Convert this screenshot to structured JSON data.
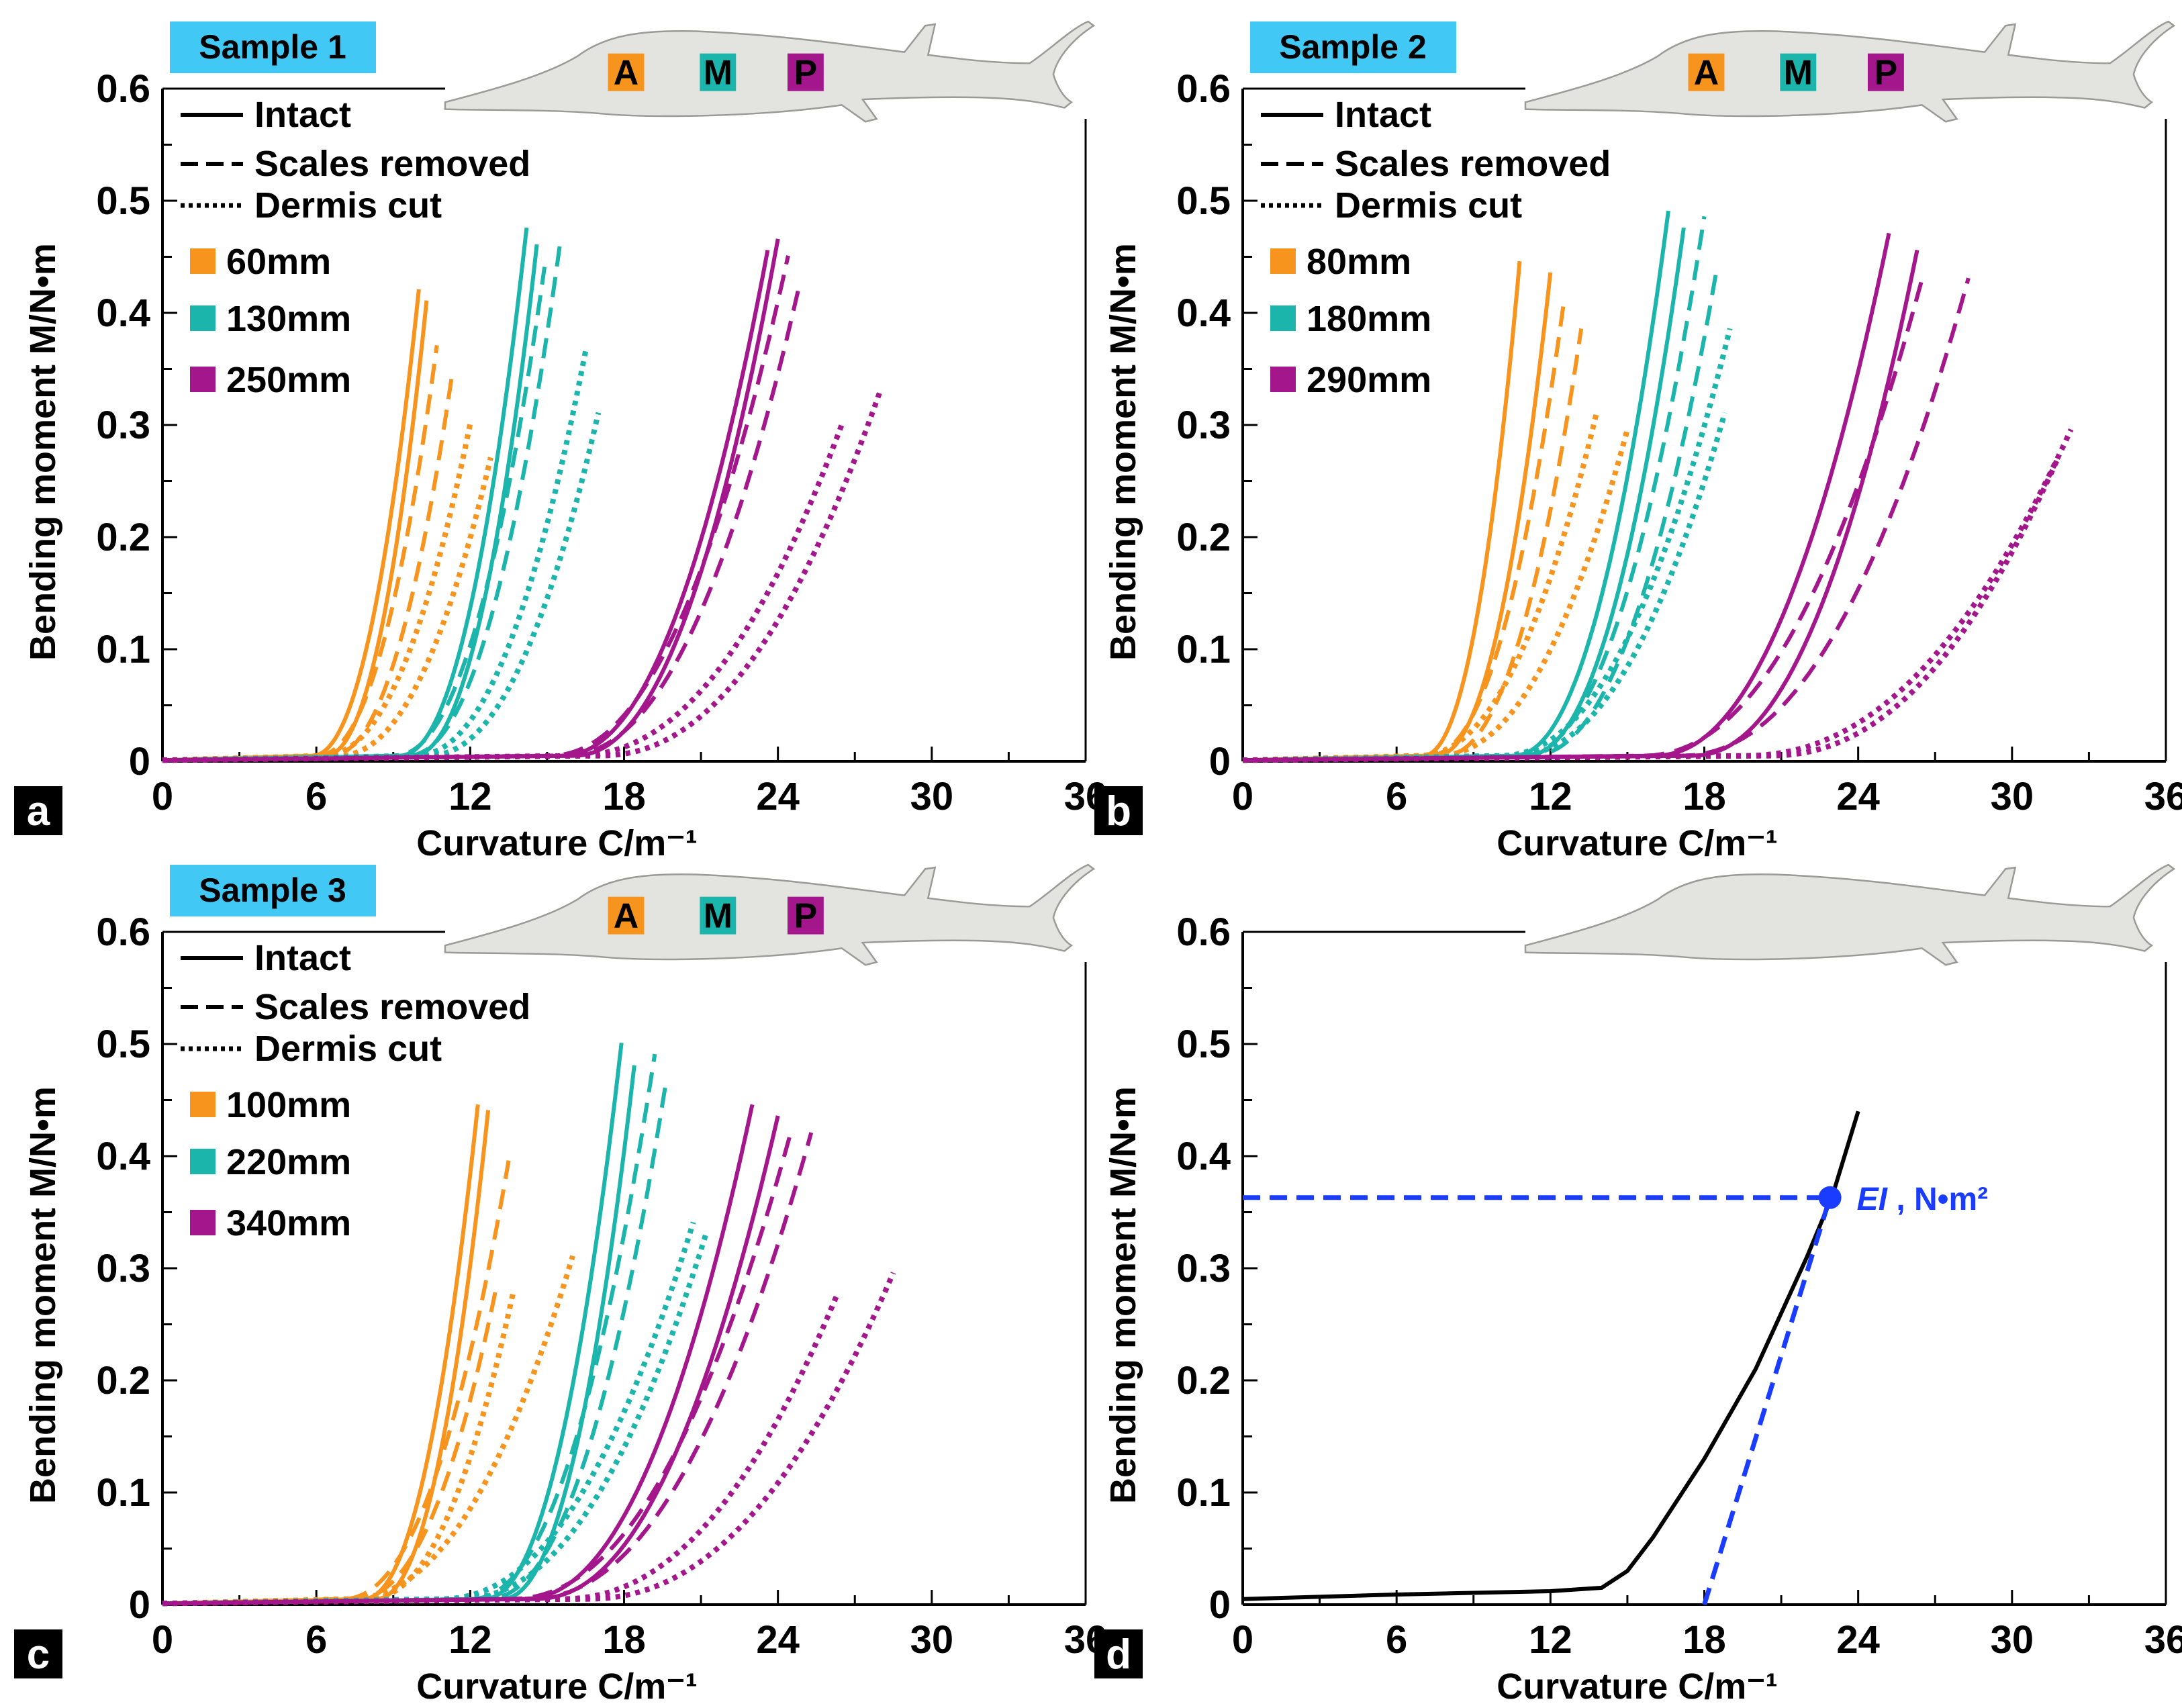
{
  "colors": {
    "orange": "#f7941d",
    "teal": "#1cb5ac",
    "magenta": "#a3168c",
    "blue": "#1a3cff",
    "sample_bg": "#41c8f5",
    "fish": "#e3e3df"
  },
  "chart_data": [
    {
      "panel": "a",
      "type": "line",
      "sample": "Sample 1",
      "xlabel": "Curvature C/m⁻¹",
      "ylabel": "Bending moment M/N•m",
      "xlim": [
        0,
        36
      ],
      "ylim": [
        0,
        0.6
      ],
      "xticks": [
        "0",
        "6",
        "12",
        "18",
        "24",
        "30",
        "36"
      ],
      "yticks": [
        "0",
        "0.1",
        "0.2",
        "0.3",
        "0.4",
        "0.5",
        "0.6"
      ],
      "legend_styles": [
        "Intact",
        "Scales removed",
        "Dermis cut"
      ],
      "fish_labels": [
        "A",
        "M",
        "P"
      ],
      "groups": [
        {
          "name": "60mm",
          "color": "orange",
          "curves": [
            {
              "style": "solid",
              "onset": 5.8,
              "end": [
                10.0,
                0.42
              ]
            },
            {
              "style": "solid",
              "onset": 6.3,
              "end": [
                10.3,
                0.41
              ]
            },
            {
              "style": "dashed",
              "onset": 6.0,
              "end": [
                10.7,
                0.37
              ]
            },
            {
              "style": "dashed",
              "onset": 6.5,
              "end": [
                11.3,
                0.345
              ]
            },
            {
              "style": "dotted",
              "onset": 6.2,
              "end": [
                12.0,
                0.3
              ]
            },
            {
              "style": "dotted",
              "onset": 6.8,
              "end": [
                12.8,
                0.27
              ]
            }
          ]
        },
        {
          "name": "130mm",
          "color": "teal",
          "curves": [
            {
              "style": "solid",
              "onset": 9.2,
              "end": [
                14.2,
                0.475
              ]
            },
            {
              "style": "solid",
              "onset": 9.7,
              "end": [
                14.6,
                0.46
              ]
            },
            {
              "style": "dashed",
              "onset": 9.0,
              "end": [
                14.9,
                0.44
              ]
            },
            {
              "style": "dashed",
              "onset": 9.5,
              "end": [
                15.5,
                0.46
              ]
            },
            {
              "style": "dotted",
              "onset": 9.8,
              "end": [
                16.5,
                0.365
              ]
            },
            {
              "style": "dotted",
              "onset": 10.3,
              "end": [
                17.0,
                0.31
              ]
            }
          ]
        },
        {
          "name": "250mm",
          "color": "magenta",
          "curves": [
            {
              "style": "solid",
              "onset": 15.5,
              "end": [
                23.6,
                0.455
              ]
            },
            {
              "style": "solid",
              "onset": 16.0,
              "end": [
                24.0,
                0.465
              ]
            },
            {
              "style": "dashed",
              "onset": 15.0,
              "end": [
                24.4,
                0.45
              ]
            },
            {
              "style": "dashed",
              "onset": 15.6,
              "end": [
                24.8,
                0.42
              ]
            },
            {
              "style": "dotted",
              "onset": 16.0,
              "end": [
                26.5,
                0.3
              ]
            },
            {
              "style": "dotted",
              "onset": 17.0,
              "end": [
                28.0,
                0.33
              ]
            }
          ]
        }
      ]
    },
    {
      "panel": "b",
      "type": "line",
      "sample": "Sample 2",
      "xlabel": "Curvature C/m⁻¹",
      "ylabel": "Bending moment M/N•m",
      "xlim": [
        0,
        36
      ],
      "ylim": [
        0,
        0.6
      ],
      "xticks": [
        "0",
        "6",
        "12",
        "18",
        "24",
        "30",
        "36"
      ],
      "yticks": [
        "0",
        "0.1",
        "0.2",
        "0.3",
        "0.4",
        "0.5",
        "0.6"
      ],
      "legend_styles": [
        "Intact",
        "Scales removed",
        "Dermis cut"
      ],
      "fish_labels": [
        "A",
        "M",
        "P"
      ],
      "groups": [
        {
          "name": "80mm",
          "color": "orange",
          "curves": [
            {
              "style": "solid",
              "onset": 7.0,
              "end": [
                10.8,
                0.445
              ]
            },
            {
              "style": "solid",
              "onset": 7.5,
              "end": [
                12.0,
                0.435
              ]
            },
            {
              "style": "dashed",
              "onset": 7.2,
              "end": [
                12.5,
                0.405
              ]
            },
            {
              "style": "dashed",
              "onset": 7.8,
              "end": [
                13.2,
                0.385
              ]
            },
            {
              "style": "dotted",
              "onset": 6.8,
              "end": [
                13.8,
                0.31
              ]
            },
            {
              "style": "dotted",
              "onset": 7.5,
              "end": [
                15.0,
                0.295
              ]
            }
          ]
        },
        {
          "name": "180mm",
          "color": "teal",
          "curves": [
            {
              "style": "solid",
              "onset": 10.5,
              "end": [
                16.6,
                0.49
              ]
            },
            {
              "style": "solid",
              "onset": 11.0,
              "end": [
                17.2,
                0.475
              ]
            },
            {
              "style": "dashed",
              "onset": 10.8,
              "end": [
                18.0,
                0.485
              ]
            },
            {
              "style": "dashed",
              "onset": 11.2,
              "end": [
                18.5,
                0.44
              ]
            },
            {
              "style": "dotted",
              "onset": 10.0,
              "end": [
                19.0,
                0.385
              ]
            },
            {
              "style": "dotted",
              "onset": 10.5,
              "end": [
                18.8,
                0.31
              ]
            }
          ]
        },
        {
          "name": "290mm",
          "color": "magenta",
          "curves": [
            {
              "style": "solid",
              "onset": 16.0,
              "end": [
                25.2,
                0.47
              ]
            },
            {
              "style": "solid",
              "onset": 17.5,
              "end": [
                26.3,
                0.455
              ]
            },
            {
              "style": "dashed",
              "onset": 15.5,
              "end": [
                26.5,
                0.43
              ]
            },
            {
              "style": "dashed",
              "onset": 17.0,
              "end": [
                28.3,
                0.43
              ]
            },
            {
              "style": "dotted",
              "onset": 19.5,
              "end": [
                32.3,
                0.295
              ]
            },
            {
              "style": "dotted",
              "onset": 20.5,
              "end": [
                31.8,
                0.27
              ]
            }
          ]
        }
      ]
    },
    {
      "panel": "c",
      "type": "line",
      "sample": "Sample 3",
      "xlabel": "Curvature C/m⁻¹",
      "ylabel": "Bending moment M/N•m",
      "xlim": [
        0,
        36
      ],
      "ylim": [
        0,
        0.6
      ],
      "xticks": [
        "0",
        "6",
        "12",
        "18",
        "24",
        "30",
        "36"
      ],
      "yticks": [
        "0",
        "0.1",
        "0.2",
        "0.3",
        "0.4",
        "0.5",
        "0.6"
      ],
      "legend_styles": [
        "Intact",
        "Scales removed",
        "Dermis cut"
      ],
      "fish_labels": [
        "A",
        "M",
        "P"
      ],
      "groups": [
        {
          "name": "100mm",
          "color": "orange",
          "curves": [
            {
              "style": "solid",
              "onset": 7.8,
              "end": [
                12.3,
                0.445
              ]
            },
            {
              "style": "solid",
              "onset": 8.3,
              "end": [
                12.7,
                0.44
              ]
            },
            {
              "style": "dashed",
              "onset": 7.0,
              "end": [
                13.5,
                0.395
              ]
            },
            {
              "style": "dashed",
              "onset": 7.5,
              "end": [
                13.0,
                0.28
              ]
            },
            {
              "style": "dotted",
              "onset": 7.2,
              "end": [
                16.0,
                0.31
              ]
            },
            {
              "style": "dotted",
              "onset": 8.0,
              "end": [
                13.7,
                0.28
              ]
            }
          ]
        },
        {
          "name": "220mm",
          "color": "teal",
          "curves": [
            {
              "style": "solid",
              "onset": 12.5,
              "end": [
                17.9,
                0.5
              ]
            },
            {
              "style": "solid",
              "onset": 13.2,
              "end": [
                18.4,
                0.48
              ]
            },
            {
              "style": "dashed",
              "onset": 12.0,
              "end": [
                19.2,
                0.49
              ]
            },
            {
              "style": "dashed",
              "onset": 12.6,
              "end": [
                19.6,
                0.46
              ]
            },
            {
              "style": "dotted",
              "onset": 10.8,
              "end": [
                20.7,
                0.34
              ]
            },
            {
              "style": "dotted",
              "onset": 11.5,
              "end": [
                21.2,
                0.33
              ]
            }
          ]
        },
        {
          "name": "340mm",
          "color": "magenta",
          "curves": [
            {
              "style": "solid",
              "onset": 14.0,
              "end": [
                23.0,
                0.445
              ]
            },
            {
              "style": "solid",
              "onset": 14.5,
              "end": [
                24.0,
                0.435
              ]
            },
            {
              "style": "dashed",
              "onset": 13.5,
              "end": [
                24.5,
                0.42
              ]
            },
            {
              "style": "dashed",
              "onset": 14.2,
              "end": [
                25.3,
                0.42
              ]
            },
            {
              "style": "dotted",
              "onset": 15.5,
              "end": [
                26.3,
                0.275
              ]
            },
            {
              "style": "dotted",
              "onset": 16.5,
              "end": [
                28.5,
                0.295
              ]
            }
          ]
        }
      ]
    },
    {
      "panel": "d",
      "type": "line",
      "xlabel": "Curvature C/m⁻¹",
      "ylabel": "Bending moment M/N•m",
      "xlim": [
        0,
        36
      ],
      "ylim": [
        0,
        0.6
      ],
      "xticks": [
        "0",
        "6",
        "12",
        "18",
        "24",
        "30",
        "36"
      ],
      "yticks": [
        "0",
        "0.1",
        "0.2",
        "0.3",
        "0.4",
        "0.5",
        "0.6"
      ],
      "curve": {
        "color": "#000000",
        "points": [
          [
            0,
            0.005
          ],
          [
            6,
            0.009
          ],
          [
            12,
            0.012
          ],
          [
            14,
            0.015
          ],
          [
            15,
            0.03
          ],
          [
            16,
            0.06
          ],
          [
            18,
            0.13
          ],
          [
            20,
            0.21
          ],
          [
            22,
            0.31
          ],
          [
            23,
            0.365
          ],
          [
            24,
            0.44
          ]
        ]
      },
      "tangent": {
        "from": [
          18.0,
          0.0
        ],
        "to": [
          22.9,
          0.363
        ]
      },
      "marker": {
        "x": 22.9,
        "y": 0.363,
        "label_ei": "EI",
        "label_unit": " , N•m²"
      }
    }
  ]
}
